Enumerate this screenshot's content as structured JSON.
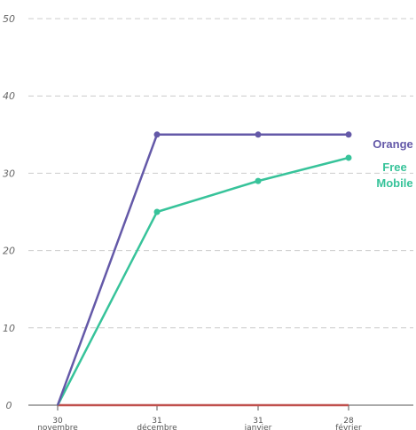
{
  "chart_data": {
    "type": "line",
    "x": [
      "30 novembre",
      "31 décembre",
      "31 janvier",
      "28 février"
    ],
    "x_ticks": [
      {
        "line1": "30",
        "line2": "novembre"
      },
      {
        "line1": "31",
        "line2": "décembre"
      },
      {
        "line1": "31",
        "line2": "janvier"
      },
      {
        "line1": "28",
        "line2": "février"
      }
    ],
    "yticks": [
      "0",
      "10",
      "20",
      "30",
      "40",
      "50"
    ],
    "ylim": [
      0,
      50
    ],
    "grid": true,
    "series": [
      {
        "name": "Orange",
        "label_lines": [
          "Orange"
        ],
        "color": "#6459a8",
        "values": [
          0,
          35,
          35,
          35
        ],
        "markers": true
      },
      {
        "name": "Free Mobile",
        "label_lines": [
          "Free",
          "Mobile"
        ],
        "color": "#37c39a",
        "values": [
          0,
          25,
          29,
          32
        ],
        "markers": true
      },
      {
        "name": "",
        "label_lines": [],
        "color": "#c0504d",
        "values": [
          0,
          0,
          0,
          0
        ],
        "markers": false
      }
    ]
  }
}
